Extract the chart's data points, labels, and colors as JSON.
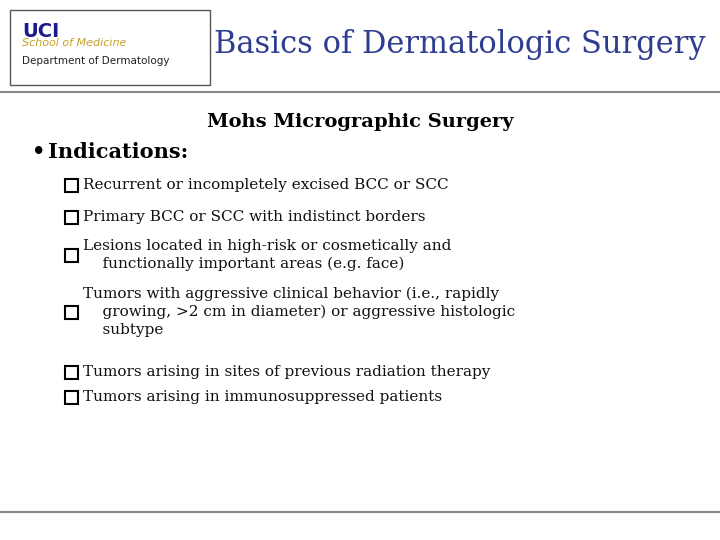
{
  "title": "Basics of Dermatologic Surgery",
  "title_color": "#2E3D8F",
  "subtitle": "Mohs Micrographic Surgery",
  "subtitle_color": "#000000",
  "bullet_header": "Indications:",
  "bullet_header_color": "#000000",
  "background_color": "#FFFFFF",
  "header_bg_color": "#FFFFFF",
  "items": [
    "Recurrent or incompletely excised BCC or SCC",
    "Primary BCC or SCC with indistinct borders",
    "Lesions located in high-risk or cosmetically and\n    functionally important areas (e.g. face)",
    "Tumors with aggressive clinical behavior (i.e., rapidly\n    growing, >2 cm in diameter) or aggressive histologic\n    subtype",
    "Tumors arising in sites of previous radiation therapy",
    "Tumors arising in immunosuppressed patients"
  ],
  "logo_box_color": "#FFFFFF",
  "logo_border_color": "#555555",
  "uci_text_color": "#1A1A8C",
  "som_text_color": "#C8A020",
  "dept_text_color": "#222222",
  "divider_color": "#888888",
  "footer_divider_color": "#888888",
  "item_fontsize": 11,
  "subtitle_fontsize": 14,
  "bullet_header_fontsize": 15,
  "title_fontsize": 22
}
